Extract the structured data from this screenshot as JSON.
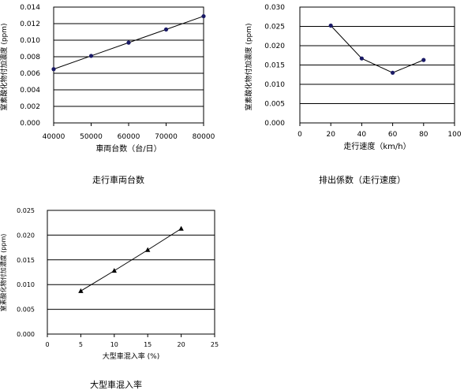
{
  "chart_data": [
    {
      "type": "line",
      "caption": "走行車両台数",
      "xlabel": "車両台数（台/日）",
      "ylabel": "窒素酸化物付加濃度 (ppm)",
      "xlim": [
        40000,
        80000
      ],
      "ylim": [
        0,
        0.014
      ],
      "xticks": [
        "40000",
        "50000",
        "60000",
        "70000",
        "80000"
      ],
      "yticks": [
        "0.000",
        "0.002",
        "0.004",
        "0.006",
        "0.008",
        "0.010",
        "0.012",
        "0.014"
      ],
      "grid": "horizontal",
      "marker": "circle",
      "series": [
        {
          "x": [
            40000,
            50000,
            60000,
            70000,
            80000
          ],
          "y": [
            0.0065,
            0.0081,
            0.0097,
            0.0113,
            0.0129
          ]
        }
      ]
    },
    {
      "type": "line",
      "caption": "排出係数（走行速度）",
      "xlabel": "走行速度（km/h）",
      "ylabel": "窒素酸化物付加濃度 (ppm)",
      "xlim": [
        0,
        100
      ],
      "ylim": [
        0,
        0.03
      ],
      "xticks": [
        "0",
        "20",
        "40",
        "60",
        "80",
        "100"
      ],
      "yticks": [
        "0.000",
        "0.005",
        "0.010",
        "0.015",
        "0.020",
        "0.025",
        "0.030"
      ],
      "grid": "horizontal",
      "marker": "circle",
      "series": [
        {
          "x": [
            20,
            40,
            60,
            80
          ],
          "y": [
            0.0252,
            0.0167,
            0.013,
            0.0163
          ]
        }
      ]
    },
    {
      "type": "line",
      "caption": "大型車混入率",
      "xlabel": "大型車混入率 (%)",
      "ylabel": "窒素酸化物付加濃度 (ppm)",
      "xlim": [
        0,
        25
      ],
      "ylim": [
        0,
        0.025
      ],
      "xticks": [
        "0",
        "5",
        "10",
        "15",
        "20",
        "25"
      ],
      "yticks": [
        "0.000",
        "0.005",
        "0.010",
        "0.015",
        "0.020",
        "0.025"
      ],
      "grid": "horizontal",
      "marker": "triangle",
      "series": [
        {
          "x": [
            5,
            10,
            15,
            20
          ],
          "y": [
            0.0087,
            0.0128,
            0.017,
            0.0213
          ]
        }
      ]
    }
  ],
  "colors": {
    "line": "#000000",
    "marker": "#000000",
    "marker_circle": "#1a1a66",
    "axis": "#000000",
    "grid": "#000000"
  }
}
